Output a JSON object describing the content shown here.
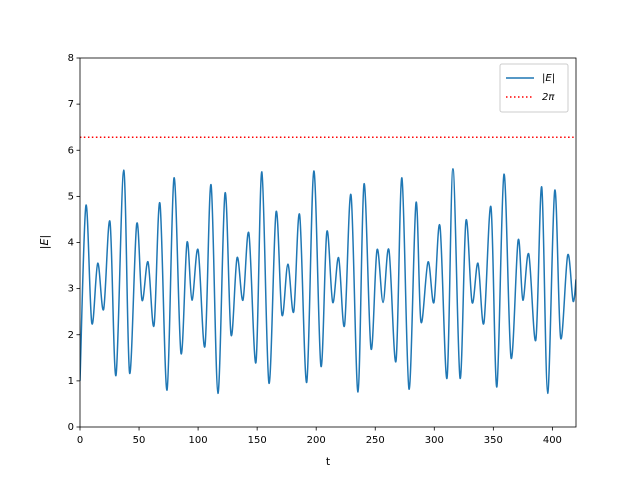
{
  "chart_data": {
    "type": "line",
    "xlabel": "t",
    "ylabel": "|E|",
    "xlim": [
      0,
      420
    ],
    "xticks": [
      0,
      50,
      100,
      150,
      200,
      250,
      300,
      350,
      400
    ],
    "ylim": [
      0,
      8
    ],
    "yticks": [
      0,
      1,
      2,
      3,
      4,
      5,
      6,
      7,
      8
    ],
    "legend": "upper right",
    "series": [
      {
        "name": "|E|",
        "color": "#1f77b4",
        "style": "solid",
        "x": [
          0,
          5,
          10,
          15,
          20,
          25.4,
          30.5,
          37,
          42,
          48,
          52.5,
          57.6,
          62.7,
          67.7,
          73.7,
          79.6,
          85.5,
          90.6,
          94.8,
          100,
          105.8,
          111,
          116.8,
          122.8,
          127.9,
          133,
          138,
          143,
          149,
          154,
          160,
          166,
          171,
          176,
          181,
          186,
          192,
          198,
          204,
          209,
          214,
          219,
          224,
          229.5,
          235.4,
          240.5,
          246.4,
          251.5,
          256.6,
          261.6,
          267.6,
          272.6,
          278.6,
          284.5,
          288.7,
          294.7,
          299.7,
          304.8,
          310.8,
          315.8,
          321.8,
          326.8,
          332,
          337,
          342,
          348,
          353,
          359,
          365,
          371,
          375,
          380,
          386,
          391,
          396,
          402,
          407,
          413,
          417.5,
          420
        ],
        "values": [
          1.0,
          4.8,
          2.25,
          3.55,
          2.55,
          4.45,
          1.12,
          5.57,
          1.17,
          4.4,
          2.75,
          3.58,
          2.2,
          4.85,
          0.8,
          5.4,
          1.6,
          4.0,
          2.75,
          3.84,
          1.75,
          5.25,
          0.73,
          5.07,
          2.0,
          3.67,
          2.75,
          4.2,
          1.4,
          5.53,
          0.95,
          4.66,
          2.43,
          3.53,
          2.5,
          4.6,
          0.97,
          5.55,
          1.32,
          4.23,
          2.7,
          3.67,
          2.2,
          5.03,
          0.76,
          5.27,
          1.7,
          3.84,
          2.7,
          3.84,
          1.43,
          5.4,
          0.82,
          4.86,
          2.28,
          3.58,
          2.7,
          4.36,
          1.06,
          5.6,
          1.06,
          4.47,
          2.7,
          3.55,
          2.25,
          4.77,
          0.87,
          5.48,
          1.5,
          4.05,
          2.75,
          3.75,
          1.89,
          5.2,
          0.73,
          5.13,
          1.93,
          3.73,
          2.73,
          3.2
        ]
      },
      {
        "name": "2π",
        "color": "#ff0000",
        "style": "dotted",
        "x": [
          0,
          420
        ],
        "values": [
          6.283,
          6.283
        ]
      }
    ]
  }
}
